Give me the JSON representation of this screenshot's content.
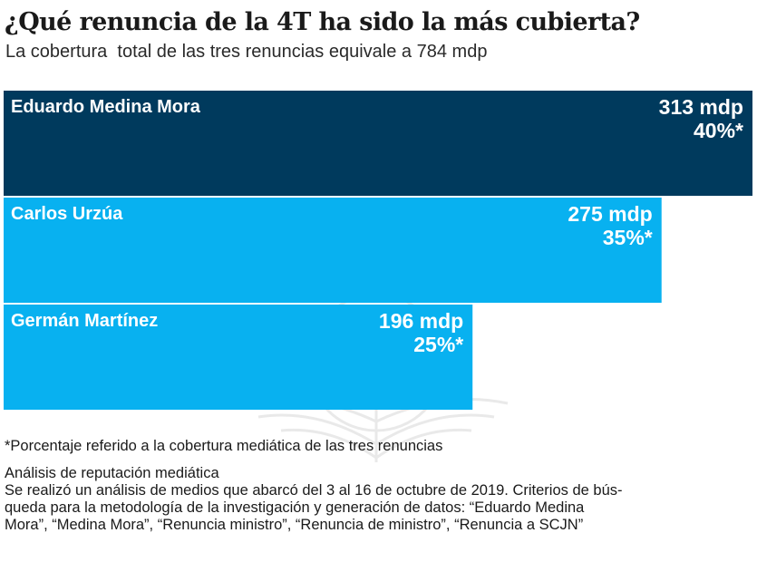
{
  "header": {
    "title": "¿Qué renuncia de la 4T ha sido la más cubierta?",
    "subtitle": "La cobertura  total de las tres renuncias equivale a 784 mdp"
  },
  "chart_data": {
    "type": "bar",
    "orientation": "horizontal",
    "title": "¿Qué renuncia de la 4T ha sido la más cubierta?",
    "subtitle": "La cobertura  total de las tres renuncias equivale a 784 mdp",
    "categories": [
      "Eduardo Medina Mora",
      "Carlos Urzúa",
      "Germán Martínez"
    ],
    "values": [
      313,
      275,
      196
    ],
    "percents": [
      40,
      35,
      25
    ],
    "value_labels": [
      "313 mdp",
      "275 mdp",
      "196 mdp"
    ],
    "percent_labels": [
      "40%*",
      "35%*",
      "25%*"
    ],
    "colors": [
      "#003a5d",
      "#00aeef",
      "#00aeef"
    ],
    "unit": "mdp",
    "xlim": [
      0,
      313
    ],
    "grid": false,
    "legend": "none"
  },
  "footer": {
    "note": "*Porcentaje referido a la cobertura mediática de las tres renuncias",
    "method_title": "Análisis de reputación mediática",
    "method_lines": [
      "Se realizó un análisis de medios que abarcó del 3 al 16 de octubre de 2019. Criterios de bús-",
      "queda para la metodología de la investigación y generación de datos: “Eduardo Medina",
      "Mora”, “Medina Mora”, “Renuncia ministro”, “Renuncia de ministro”, “Renuncia a SCJN”"
    ]
  },
  "watermark": {
    "icon": "eagle-emblem-icon"
  }
}
